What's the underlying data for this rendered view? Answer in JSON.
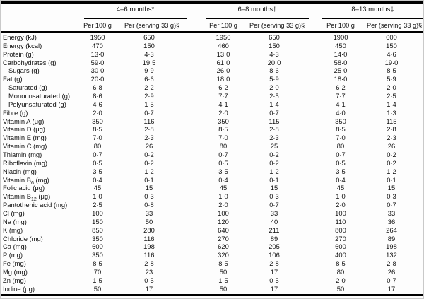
{
  "table": {
    "groups": [
      {
        "label": "4–6 months*",
        "columns": [
          "Per 100 g",
          "Per (serving 33 g)§"
        ]
      },
      {
        "label": "6–8 months†",
        "columns": [
          "Per 100 g",
          "Per (serving 33 g)§"
        ]
      },
      {
        "label": "8–13 months‡",
        "columns": [
          "Per 100 g",
          "Per (serving 33 g)§"
        ]
      }
    ],
    "rows": [
      {
        "label": "Energy (kJ)",
        "indent": false,
        "values": [
          "1950",
          "650",
          "1950",
          "650",
          "1900",
          "600"
        ]
      },
      {
        "label": "Energy (kcal)",
        "indent": false,
        "values": [
          "470",
          "150",
          "460",
          "150",
          "450",
          "150"
        ]
      },
      {
        "label": "Protein (g)",
        "indent": false,
        "values": [
          "13·0",
          "4·3",
          "13·0",
          "4·3",
          "14·0",
          "4·6"
        ]
      },
      {
        "label": "Carbohydrates (g)",
        "indent": false,
        "values": [
          "59·0",
          "19·5",
          "61·0",
          "20·0",
          "58·0",
          "19·0"
        ]
      },
      {
        "label": "Sugars (g)",
        "indent": true,
        "values": [
          "30·0",
          "9·9",
          "26·0",
          "8·6",
          "25·0",
          "8·5"
        ]
      },
      {
        "label": "Fat (g)",
        "indent": false,
        "values": [
          "20·0",
          "6·6",
          "18·0",
          "5·9",
          "18·0",
          "5·9"
        ]
      },
      {
        "label": "Saturated (g)",
        "indent": true,
        "values": [
          "6·8",
          "2·2",
          "6·2",
          "2·0",
          "6·2",
          "2·0"
        ]
      },
      {
        "label": "Monounsaturated (g)",
        "indent": true,
        "values": [
          "8·6",
          "2·9",
          "7·7",
          "2·5",
          "7·7",
          "2·5"
        ]
      },
      {
        "label": "Polyunsaturated (g)",
        "indent": true,
        "values": [
          "4·6",
          "1·5",
          "4·1",
          "1·4",
          "4·1",
          "1·4"
        ]
      },
      {
        "label": "Fibre (g)",
        "indent": false,
        "values": [
          "2·0",
          "0·7",
          "2·0",
          "0·7",
          "4·0",
          "1·3"
        ]
      },
      {
        "label": "Vitamin A (μg)",
        "indent": false,
        "values": [
          "350",
          "116",
          "350",
          "115",
          "350",
          "115"
        ]
      },
      {
        "label": "Vitamin D (μg)",
        "indent": false,
        "values": [
          "8·5",
          "2·8",
          "8·5",
          "2·8",
          "8·5",
          "2·8"
        ]
      },
      {
        "label": "Vitamin E (mg)",
        "indent": false,
        "values": [
          "7·0",
          "2·3",
          "7·0",
          "2·3",
          "7·0",
          "2·3"
        ]
      },
      {
        "label": "Vitamin C (mg)",
        "indent": false,
        "values": [
          "80",
          "26",
          "80",
          "25",
          "80",
          "26"
        ]
      },
      {
        "label": "Thiamin (mg)",
        "indent": false,
        "values": [
          "0·7",
          "0·2",
          "0·7",
          "0·2",
          "0·7",
          "0·2"
        ]
      },
      {
        "label": "Riboflavin (mg)",
        "indent": false,
        "values": [
          "0·5",
          "0·2",
          "0·5",
          "0·2",
          "0·5",
          "0·2"
        ]
      },
      {
        "label": "Niacin (mg)",
        "indent": false,
        "values": [
          "3·5",
          "1·2",
          "3·5",
          "1·2",
          "3·5",
          "1·2"
        ]
      },
      {
        "label": "Vitamin B_{6} (mg)",
        "indent": false,
        "values": [
          "0·4",
          "0·1",
          "0·4",
          "0·1",
          "0·4",
          "0·1"
        ]
      },
      {
        "label": "Folic acid (μg)",
        "indent": false,
        "values": [
          "45",
          "15",
          "45",
          "15",
          "45",
          "15"
        ]
      },
      {
        "label": "Vitamin B_{12} (μg)",
        "indent": false,
        "values": [
          "1·0",
          "0·3",
          "1·0",
          "0·3",
          "1·0",
          "0·3"
        ]
      },
      {
        "label": "Pantothenic acid (mg)",
        "indent": false,
        "values": [
          "2·5",
          "0·8",
          "2·0",
          "0·7",
          "2·0",
          "0·7"
        ]
      },
      {
        "label": "Cl (mg)",
        "indent": false,
        "values": [
          "100",
          "33",
          "100",
          "33",
          "100",
          "33"
        ]
      },
      {
        "label": "Na (mg)",
        "indent": false,
        "values": [
          "150",
          "50",
          "120",
          "40",
          "110",
          "36"
        ]
      },
      {
        "label": "K (mg)",
        "indent": false,
        "values": [
          "850",
          "280",
          "640",
          "211",
          "800",
          "264"
        ]
      },
      {
        "label": "Chloride (mg)",
        "indent": false,
        "values": [
          "350",
          "116",
          "270",
          "89",
          "270",
          "89"
        ]
      },
      {
        "label": "Ca (mg)",
        "indent": false,
        "values": [
          "600",
          "198",
          "620",
          "205",
          "600",
          "198"
        ]
      },
      {
        "label": "P (mg)",
        "indent": false,
        "values": [
          "350",
          "116",
          "320",
          "106",
          "400",
          "132"
        ]
      },
      {
        "label": "Fe (mg)",
        "indent": false,
        "values": [
          "8·5",
          "2·8",
          "8·5",
          "2·8",
          "8·5",
          "2·8"
        ]
      },
      {
        "label": "Mg (mg)",
        "indent": false,
        "values": [
          "70",
          "23",
          "50",
          "17",
          "80",
          "26"
        ]
      },
      {
        "label": "Zn (mg)",
        "indent": false,
        "values": [
          "1·5",
          "0·5",
          "1·5",
          "0·5",
          "2·0",
          "0·7"
        ]
      },
      {
        "label": "Iodine (μg)",
        "indent": false,
        "values": [
          "50",
          "17",
          "50",
          "17",
          "50",
          "17"
        ]
      }
    ]
  }
}
